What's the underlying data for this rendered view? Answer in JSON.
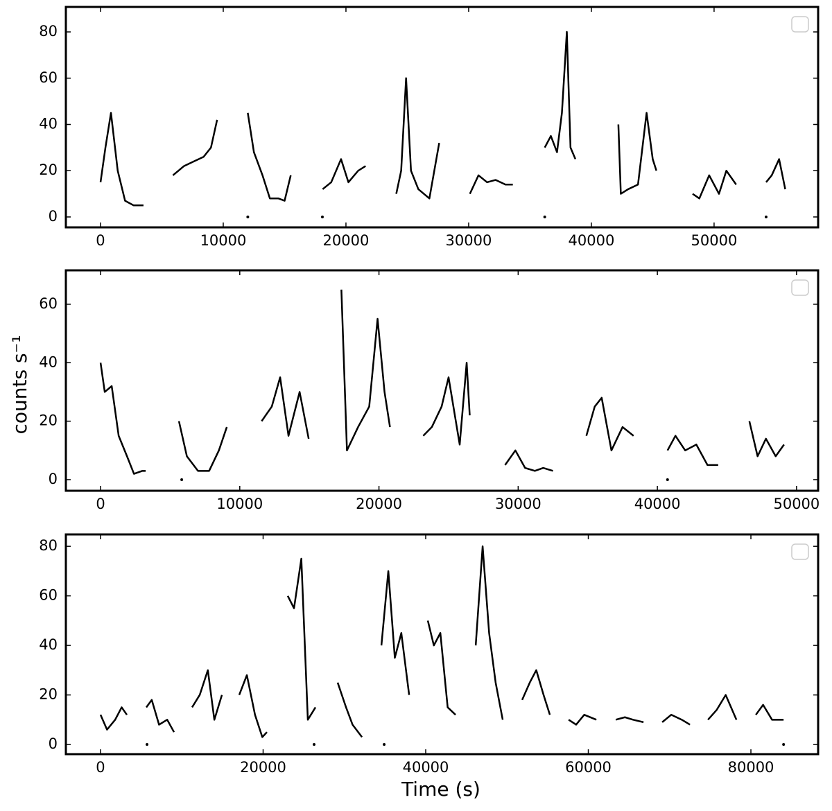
{
  "chart_data": [
    {
      "type": "line",
      "color": "#000000",
      "xlim": [
        -2825,
        58480
      ],
      "ylim": [
        -4.5,
        90.8
      ],
      "xticks": [
        0,
        10000,
        20000,
        30000,
        40000,
        50000
      ],
      "yticks": [
        0,
        20,
        40,
        60,
        80
      ],
      "x": [
        0,
        400,
        850,
        1400,
        2000,
        2700,
        3500,
        null,
        5900,
        6800,
        7600,
        8400,
        9000,
        9500,
        null,
        12000,
        null,
        12000,
        12500,
        13200,
        13800,
        14500,
        15000,
        15500,
        null,
        18080,
        null,
        18100,
        18800,
        19600,
        20200,
        21000,
        21600,
        null,
        24100,
        24500,
        24900,
        25300,
        25900,
        26800,
        27600,
        null,
        30100,
        30800,
        31500,
        32200,
        33000,
        33600,
        null,
        36200,
        null,
        36200,
        36700,
        37200,
        37600,
        38000,
        38300,
        38700,
        null,
        42200,
        42400,
        43000,
        43800,
        44500,
        45000,
        45300,
        null,
        48250,
        48800,
        49600,
        50400,
        51000,
        51800,
        null,
        54240,
        null,
        54240,
        54700,
        55300,
        55800
      ],
      "y": [
        15,
        30,
        45,
        20,
        7,
        5,
        5,
        null,
        18,
        22,
        24,
        26,
        30,
        42,
        null,
        0,
        null,
        45,
        28,
        18,
        8,
        8,
        7,
        18,
        null,
        0,
        null,
        12,
        15,
        25,
        15,
        20,
        22,
        null,
        10,
        20,
        60,
        20,
        12,
        8,
        32,
        null,
        10,
        18,
        15,
        16,
        14,
        14,
        null,
        0,
        null,
        30,
        35,
        28,
        45,
        80,
        30,
        25,
        null,
        40,
        10,
        12,
        14,
        45,
        25,
        20,
        null,
        10,
        8,
        18,
        10,
        20,
        14,
        null,
        0,
        null,
        15,
        18,
        25,
        12
      ]
    },
    {
      "type": "line",
      "color": "#000000",
      "ylabel": "counts s⁻¹",
      "xlim": [
        -2493,
        51550
      ],
      "ylim": [
        -3.8,
        71.6
      ],
      "xticks": [
        0,
        10000,
        20000,
        30000,
        40000,
        50000
      ],
      "yticks": [
        0,
        20,
        40,
        60
      ],
      "x": [
        0,
        300,
        800,
        1300,
        1900,
        2400,
        3000,
        3240,
        null,
        5630,
        6200,
        7000,
        7800,
        8500,
        9070,
        null,
        5830,
        null,
        11570,
        12300,
        12900,
        13500,
        14300,
        14950,
        null,
        17300,
        17700,
        18500,
        19300,
        19900,
        20400,
        20790,
        null,
        23180,
        23800,
        24500,
        25000,
        25800,
        26300,
        26520,
        null,
        29060,
        29800,
        30500,
        31200,
        31800,
        32500,
        null,
        34900,
        35500,
        36000,
        36700,
        37500,
        38290,
        null,
        40730,
        null,
        40730,
        41300,
        42000,
        42800,
        43600,
        44370,
        null,
        46610,
        47200,
        47800,
        48500,
        49100
      ],
      "y": [
        40,
        30,
        32,
        15,
        8,
        2,
        3,
        3,
        null,
        20,
        8,
        3,
        3,
        10,
        18,
        null,
        0,
        null,
        20,
        25,
        35,
        15,
        30,
        14,
        null,
        65,
        10,
        18,
        25,
        55,
        30,
        18,
        null,
        15,
        18,
        25,
        35,
        12,
        40,
        22,
        null,
        5,
        10,
        4,
        3,
        4,
        3,
        null,
        15,
        25,
        28,
        10,
        18,
        15,
        null,
        0,
        null,
        10,
        15,
        10,
        12,
        5,
        5,
        null,
        20,
        8,
        14,
        8,
        12
      ]
    },
    {
      "type": "line",
      "color": "#000000",
      "xlabel": "Time (s)",
      "xlim": [
        -4264,
        88270
      ],
      "ylim": [
        -3.9,
        84.8
      ],
      "xticks": [
        0,
        20000,
        40000,
        60000,
        80000
      ],
      "yticks": [
        0,
        20,
        40,
        60,
        80
      ],
      "x": [
        0,
        800,
        1800,
        2600,
        3240,
        null,
        5630,
        6300,
        7200,
        8200,
        9040,
        null,
        5720,
        null,
        11260,
        12200,
        13200,
        14000,
        14930,
        null,
        17060,
        18000,
        19000,
        19900,
        20470,
        null,
        23030,
        23800,
        24700,
        25500,
        26440,
        null,
        26270,
        null,
        29170,
        30200,
        31000,
        32160,
        null,
        34890,
        null,
        34550,
        35400,
        36200,
        37000,
        37960,
        null,
        40260,
        41000,
        41800,
        42700,
        43670,
        null,
        46150,
        47000,
        47800,
        48600,
        49470,
        null,
        51860,
        52800,
        53600,
        54500,
        55270,
        null,
        57580,
        58500,
        59500,
        60990,
        null,
        63380,
        64500,
        65500,
        66790,
        null,
        69090,
        70200,
        71500,
        72510,
        null,
        74720,
        75800,
        76900,
        78220,
        null,
        80610,
        81500,
        82600,
        84020,
        null,
        84020
      ],
      "y": [
        12,
        6,
        10,
        15,
        12,
        null,
        15,
        18,
        8,
        10,
        5,
        null,
        0,
        null,
        15,
        20,
        30,
        10,
        20,
        null,
        20,
        28,
        12,
        3,
        5,
        null,
        60,
        55,
        75,
        10,
        15,
        null,
        0,
        null,
        25,
        15,
        8,
        3,
        null,
        0,
        null,
        40,
        70,
        35,
        45,
        20,
        null,
        50,
        40,
        45,
        15,
        12,
        null,
        40,
        80,
        45,
        25,
        10,
        null,
        18,
        25,
        30,
        20,
        12,
        null,
        10,
        8,
        12,
        10,
        null,
        10,
        11,
        10,
        9,
        null,
        9,
        12,
        10,
        8,
        null,
        10,
        14,
        20,
        10,
        null,
        12,
        16,
        10,
        10,
        null,
        0
      ]
    }
  ]
}
